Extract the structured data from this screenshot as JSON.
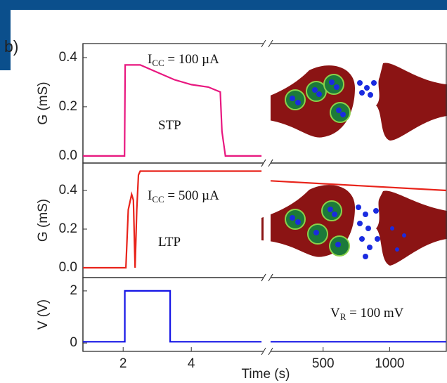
{
  "panel_label": "b)",
  "chart_data": [
    {
      "type": "line",
      "ylabel": "G (mS)",
      "ylim": [
        -0.029,
        0.457
      ],
      "yticks": [
        {
          "value": 0,
          "label": "0.0"
        },
        0.2,
        0.4
      ],
      "annotations": [
        {
          "main": "I",
          "sub": "CC",
          "tail": " = 100 µA"
        },
        {
          "main": "STP"
        }
      ],
      "series": [
        {
          "color": "#e8177f",
          "x": [
            0.82,
            2.04,
            2.06,
            2.5,
            3.0,
            3.5,
            4.0,
            4.5,
            4.85,
            4.9,
            5.0,
            6.06
          ],
          "values": [
            0,
            0,
            0.37,
            0.37,
            0.34,
            0.31,
            0.29,
            0.28,
            0.26,
            0.1,
            0,
            0
          ]
        }
      ]
    },
    {
      "type": "line",
      "ylabel": "G (mS)",
      "ylim": [
        -0.051,
        0.542
      ],
      "yticks": [
        {
          "value": 0,
          "label": "0.0"
        },
        0.2,
        0.4
      ],
      "annotations": [
        {
          "main": "I",
          "sub": "CC",
          "tail": " = 500 µA"
        },
        {
          "main": "LTP"
        }
      ],
      "series": [
        {
          "color": "#e8231a",
          "x": [
            0.82,
            2.08,
            2.15,
            2.25,
            2.3,
            2.35,
            2.4,
            2.45,
            2.5,
            6.06
          ],
          "values": [
            0,
            0,
            0.3,
            0.38,
            0.35,
            0,
            0.3,
            0.48,
            0.5,
            0.5
          ]
        },
        {
          "color": "#e8231a",
          "axis": "x2",
          "x": [
            105,
            1426
          ],
          "values": [
            0.45,
            0.4
          ]
        }
      ]
    },
    {
      "type": "line",
      "ylabel": "V (V)",
      "ylim": [
        -0.32,
        2.51
      ],
      "yticks": [
        0,
        2
      ],
      "annotations": [
        {
          "main": "V",
          "sub": "R",
          "tail": " = 100 mV"
        }
      ],
      "xlabel": "Time (s)",
      "xlim": [
        0.82,
        6.12
      ],
      "xticks": [
        2,
        4
      ],
      "x2lim": [
        105,
        1426
      ],
      "x2ticks": [
        500,
        1000
      ],
      "series": [
        {
          "color": "#1414e6",
          "x": [
            0.82,
            2.05,
            2.05,
            3.38,
            3.38,
            6.06
          ],
          "values": [
            0.05,
            0.05,
            2,
            2,
            0.05,
            0.05
          ]
        },
        {
          "color": "#1414e6",
          "axis": "x2",
          "x": [
            105,
            1426
          ],
          "values": [
            0.05,
            0.05
          ]
        }
      ]
    }
  ]
}
